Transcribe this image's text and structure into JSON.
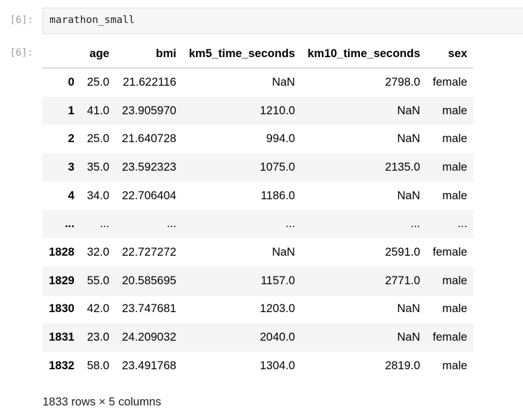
{
  "input_cell": {
    "prompt": "[6]:",
    "code": "marathon_small"
  },
  "output_cell": {
    "prompt": "[6]:",
    "columns": [
      "",
      "age",
      "bmi",
      "km5_time_seconds",
      "km10_time_seconds",
      "sex"
    ],
    "rows": [
      [
        "0",
        "25.0",
        "21.622116",
        "NaN",
        "2798.0",
        "female"
      ],
      [
        "1",
        "41.0",
        "23.905970",
        "1210.0",
        "NaN",
        "male"
      ],
      [
        "2",
        "25.0",
        "21.640728",
        "994.0",
        "NaN",
        "male"
      ],
      [
        "3",
        "35.0",
        "23.592323",
        "1075.0",
        "2135.0",
        "male"
      ],
      [
        "4",
        "34.0",
        "22.706404",
        "1186.0",
        "NaN",
        "male"
      ],
      [
        "...",
        "...",
        "...",
        "...",
        "...",
        "..."
      ],
      [
        "1828",
        "32.0",
        "22.727272",
        "NaN",
        "2591.0",
        "female"
      ],
      [
        "1829",
        "55.0",
        "20.585695",
        "1157.0",
        "2771.0",
        "male"
      ],
      [
        "1830",
        "42.0",
        "23.747681",
        "1203.0",
        "NaN",
        "male"
      ],
      [
        "1831",
        "23.0",
        "24.209032",
        "2040.0",
        "NaN",
        "female"
      ],
      [
        "1832",
        "58.0",
        "23.491768",
        "1304.0",
        "2819.0",
        "male"
      ]
    ],
    "shape_text": "1833 rows × 5 columns"
  }
}
